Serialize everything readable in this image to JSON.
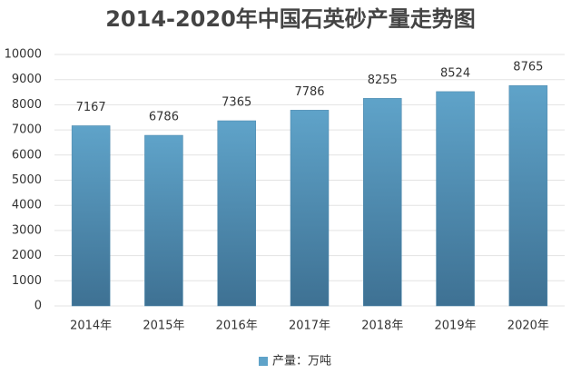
{
  "chart_data": {
    "type": "bar",
    "title": "2014-2020年中国石英砂产量走势图",
    "categories": [
      "2014年",
      "2015年",
      "2016年",
      "2017年",
      "2018年",
      "2019年",
      "2020年"
    ],
    "series": [
      {
        "name": "产量：万吨",
        "color": "#5fa3c9",
        "values": [
          7167,
          6786,
          7365,
          7786,
          8255,
          8524,
          8765
        ]
      }
    ],
    "ylim": [
      0,
      10000
    ],
    "yticks": [
      0,
      1000,
      2000,
      3000,
      4000,
      5000,
      6000,
      7000,
      8000,
      9000,
      10000
    ],
    "grid": true,
    "legend": "bottom"
  }
}
